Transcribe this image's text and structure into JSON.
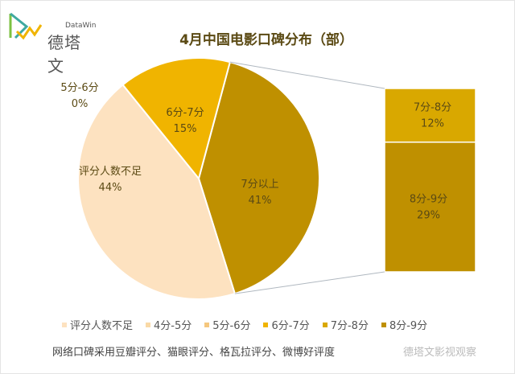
{
  "logo": {
    "sub": "DataWin",
    "main": "德塔文"
  },
  "chart_data": {
    "type": "pie",
    "subtype": "pie-of-bar",
    "title": "4月中国电影口碑分布（部）",
    "pie": {
      "categories": [
        "7分以上",
        "评分人数不足",
        "4分-5分",
        "5分-6分",
        "6分-7分"
      ],
      "values": [
        41,
        44,
        0,
        0,
        15
      ],
      "colors": [
        "#bf9000",
        "#fde2c0",
        "#f9d9a6",
        "#f5c77e",
        "#f0b400"
      ],
      "labels": [
        {
          "name": "7分以上",
          "pct": "41%"
        },
        {
          "name": "评分人数不足",
          "pct": "44%"
        },
        null,
        {
          "name": "5分-6分",
          "pct": "0%"
        },
        {
          "name": "6分-7分",
          "pct": "15%"
        }
      ]
    },
    "secondary": {
      "categories": [
        "7分-8分",
        "8分-9分"
      ],
      "values": [
        12,
        29
      ],
      "pcts": [
        "12%",
        "29%"
      ],
      "colors": [
        "#d9a800",
        "#bf9000"
      ]
    },
    "legend": [
      {
        "label": "评分人数不足",
        "color": "#fde2c0"
      },
      {
        "label": "4分-5分",
        "color": "#f9d9a6"
      },
      {
        "label": "5分-6分",
        "color": "#f5c77e"
      },
      {
        "label": "6分-7分",
        "color": "#f0b400"
      },
      {
        "label": "7分-8分",
        "color": "#d9a800"
      },
      {
        "label": "8分-9分",
        "color": "#bf9000"
      }
    ],
    "legend_position": "bottom"
  },
  "footer": {
    "note": "网络口碑采用豆瓣评分、猫眼评分、格瓦拉评分、微博好评度",
    "watermark": "德塔文影视观察"
  }
}
